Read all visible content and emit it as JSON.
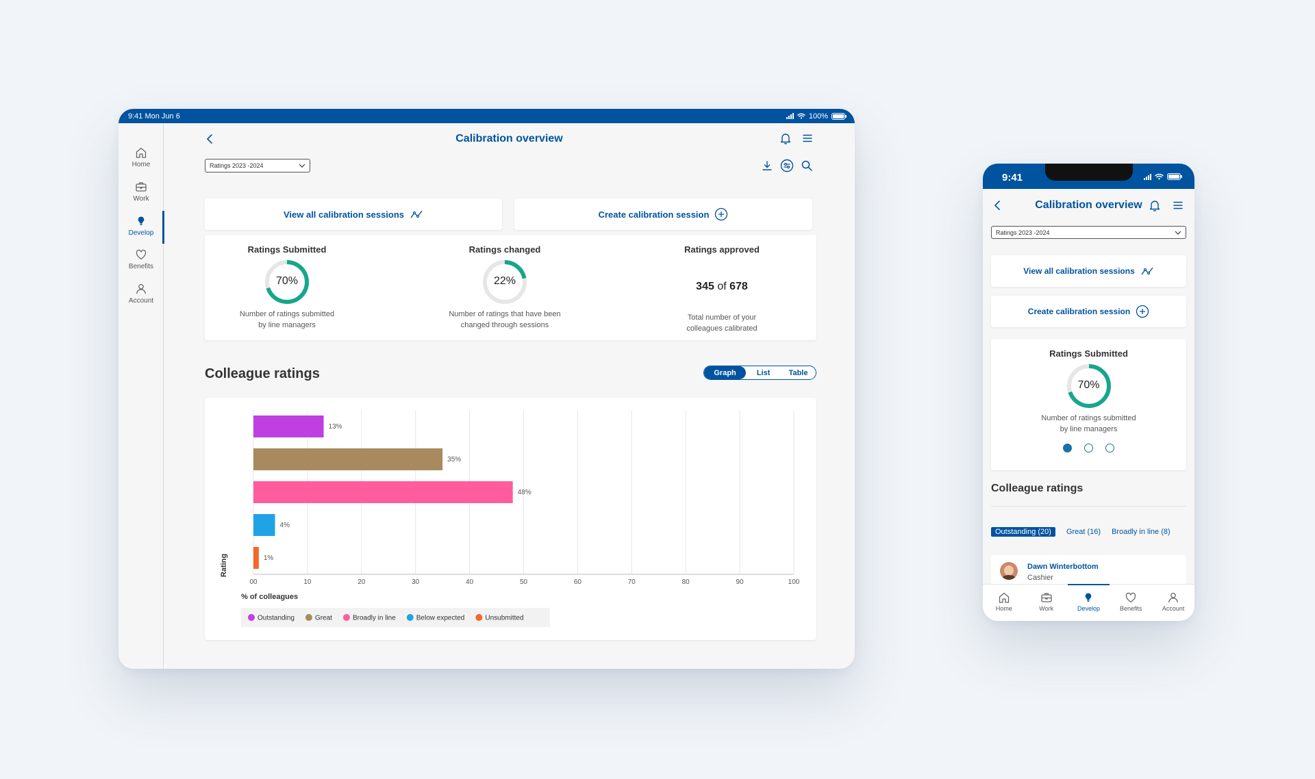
{
  "tablet": {
    "status": {
      "time_date": "9:41  Mon Jun 6",
      "battery": "100%"
    },
    "sidebar": [
      {
        "label": "Home",
        "icon": "home-icon"
      },
      {
        "label": "Work",
        "icon": "briefcase-icon"
      },
      {
        "label": "Develop",
        "icon": "lightbulb-icon",
        "active": true
      },
      {
        "label": "Benefits",
        "icon": "heart-icon"
      },
      {
        "label": "Account",
        "icon": "person-icon"
      }
    ],
    "title": "Calibration overview",
    "select_value": "Ratings 2023 -2024",
    "actions": {
      "view_all": "View all calibration sessions",
      "create": "Create calibration session"
    },
    "stats": {
      "submitted": {
        "title": "Ratings Submitted",
        "percent": "70%",
        "fraction": 0.7,
        "desc1": "Number of ratings submitted",
        "desc2": "by line managers"
      },
      "changed": {
        "title": "Ratings changed",
        "percent": "22%",
        "fraction": 0.22,
        "desc1": "Number of ratings that have been",
        "desc2": "changed through sessions"
      },
      "approved": {
        "title": "Ratings approved",
        "count": "345",
        "of": "of",
        "total": "678",
        "desc1": "Total number of your",
        "desc2": "colleagues calibrated"
      }
    },
    "section_title": "Colleague ratings",
    "view_toggle": {
      "graph": "Graph",
      "list": "List",
      "table": "Table",
      "selected": "Graph"
    }
  },
  "chart_data": {
    "type": "bar",
    "orientation": "horizontal",
    "categories": [
      "Outstanding",
      "Great",
      "Broadly in line",
      "Below expected",
      "Unsubmitted"
    ],
    "values": [
      13,
      35,
      48,
      4,
      1
    ],
    "data_labels": [
      "13%",
      "35%",
      "48%",
      "4%",
      "1%"
    ],
    "colors": [
      "#c03fe0",
      "#a88a5e",
      "#ff5c9d",
      "#1fa3e6",
      "#f2692a"
    ],
    "xlabel": "% of colleagues",
    "ylabel": "Rating",
    "xlim": [
      0,
      100
    ],
    "xticks": [
      "00",
      "10",
      "20",
      "30",
      "40",
      "50",
      "60",
      "70",
      "80",
      "90",
      "100"
    ],
    "grid": true,
    "legend_position": "bottom-left"
  },
  "phone": {
    "status": {
      "time": "9:41"
    },
    "title": "Calibration overview",
    "select_value": "Ratings 2023 -2024",
    "actions": {
      "view_all": "View all calibration sessions",
      "create": "Create calibration session"
    },
    "stat": {
      "title": "Ratings Submitted",
      "percent": "70%",
      "fraction": 0.7,
      "desc1": "Number of ratings submitted",
      "desc2": "by line managers"
    },
    "carousel_page": 1,
    "carousel_pages": 3,
    "section_title": "Colleague ratings",
    "chips": [
      "Outstanding (20)",
      "Great (16)",
      "Broadly in line (8)"
    ],
    "person": {
      "name": "Dawn Winterbottom",
      "role": "Cashier"
    },
    "tabs": [
      {
        "label": "Home",
        "icon": "home-icon"
      },
      {
        "label": "Work",
        "icon": "briefcase-icon"
      },
      {
        "label": "Develop",
        "icon": "lightbulb-icon",
        "active": true
      },
      {
        "label": "Benefits",
        "icon": "heart-icon"
      },
      {
        "label": "Account",
        "icon": "person-icon"
      }
    ]
  },
  "colors": {
    "brand_blue": "#00539f",
    "donut_green": "#17a68b",
    "donut_track": "#e6e6e6"
  }
}
